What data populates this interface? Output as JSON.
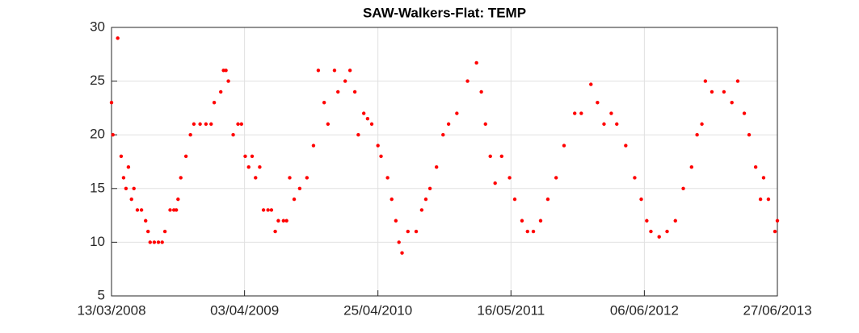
{
  "chart_data": {
    "type": "scatter",
    "title": "SAW-Walkers-Flat: TEMP",
    "x": [
      "2008-03-13",
      "2008-03-17",
      "2008-03-31",
      "2008-04-10",
      "2008-04-17",
      "2008-04-24",
      "2008-05-01",
      "2008-05-10",
      "2008-05-17",
      "2008-05-27",
      "2008-06-08",
      "2008-06-20",
      "2008-06-27",
      "2008-07-03",
      "2008-07-15",
      "2008-07-27",
      "2008-08-07",
      "2008-08-15",
      "2008-08-30",
      "2008-09-10",
      "2008-09-17",
      "2008-09-22",
      "2008-09-30",
      "2008-10-15",
      "2008-10-28",
      "2008-11-07",
      "2008-11-25",
      "2008-12-12",
      "2008-12-27",
      "2009-01-05",
      "2009-01-24",
      "2009-02-01",
      "2009-02-08",
      "2009-02-15",
      "2009-03-01",
      "2009-03-15",
      "2009-03-25",
      "2009-04-05",
      "2009-04-15",
      "2009-04-25",
      "2009-05-05",
      "2009-05-17",
      "2009-05-28",
      "2009-06-10",
      "2009-06-20",
      "2009-07-01",
      "2009-07-10",
      "2009-07-25",
      "2009-08-03",
      "2009-08-12",
      "2009-08-25",
      "2009-09-10",
      "2009-10-01",
      "2009-10-20",
      "2009-11-03",
      "2009-11-20",
      "2009-12-01",
      "2009-12-20",
      "2009-12-30",
      "2010-01-20",
      "2010-02-03",
      "2010-02-17",
      "2010-02-27",
      "2010-03-15",
      "2010-03-26",
      "2010-04-07",
      "2010-04-25",
      "2010-05-04",
      "2010-05-23",
      "2010-06-04",
      "2010-06-16",
      "2010-06-25",
      "2010-07-04",
      "2010-07-21",
      "2010-08-14",
      "2010-08-30",
      "2010-09-11",
      "2010-09-23",
      "2010-10-12",
      "2010-10-31",
      "2010-11-16",
      "2010-12-10",
      "2011-01-10",
      "2011-02-05",
      "2011-02-19",
      "2011-03-03",
      "2011-03-17",
      "2011-03-31",
      "2011-04-19",
      "2011-05-12",
      "2011-05-27",
      "2011-06-17",
      "2011-07-03",
      "2011-07-20",
      "2011-08-10",
      "2011-08-31",
      "2011-09-24",
      "2011-10-17",
      "2011-11-17",
      "2011-12-06",
      "2012-01-03",
      "2012-01-22",
      "2012-02-10",
      "2012-03-02",
      "2012-03-18",
      "2012-04-13",
      "2012-05-09",
      "2012-05-28",
      "2012-06-13",
      "2012-06-25",
      "2012-07-19",
      "2012-08-11",
      "2012-09-04",
      "2012-09-27",
      "2012-10-21",
      "2012-11-06",
      "2012-11-20",
      "2012-11-30",
      "2012-12-19",
      "2013-01-23",
      "2013-02-15",
      "2013-03-04",
      "2013-03-23",
      "2013-04-06",
      "2013-04-25",
      "2013-05-09",
      "2013-05-18",
      "2013-06-01",
      "2013-06-20",
      "2013-06-27"
    ],
    "series": [
      {
        "name": "TEMP",
        "color": "#ff0000",
        "values": [
          23,
          20,
          29,
          18,
          16,
          15,
          17,
          14,
          15,
          13,
          13,
          12,
          11,
          10,
          10,
          10,
          10,
          11,
          13,
          13,
          13,
          14,
          16,
          18,
          20,
          21,
          21,
          21,
          21,
          23,
          24,
          26,
          26,
          25,
          20,
          21,
          21,
          18,
          17,
          18,
          16,
          17,
          13,
          13,
          13,
          11,
          12,
          12,
          12,
          16,
          14,
          15,
          16,
          19,
          26,
          23,
          21,
          26,
          24,
          25,
          26,
          24,
          20,
          22,
          21.5,
          21,
          19,
          18,
          16,
          14,
          12,
          10,
          9,
          11,
          11,
          13,
          14,
          15,
          17,
          20,
          21,
          22,
          25,
          26.7,
          24,
          21,
          18,
          15.5,
          18,
          16,
          14,
          12,
          11,
          11,
          12,
          14,
          16,
          19,
          22,
          22,
          24.7,
          23,
          21,
          22,
          21,
          19,
          16,
          14,
          12,
          11,
          10.5,
          11,
          12,
          15,
          17,
          20,
          21,
          25,
          24,
          24,
          23,
          25,
          22,
          20,
          17,
          14,
          16,
          14,
          11,
          12
        ]
      }
    ],
    "xlim": [
      "2008-03-13",
      "2013-06-27"
    ],
    "xticks": [
      {
        "value": "2008-03-13",
        "label": "13/03/2008"
      },
      {
        "value": "2009-04-03",
        "label": "03/04/2009"
      },
      {
        "value": "2010-04-25",
        "label": "25/04/2010"
      },
      {
        "value": "2011-05-16",
        "label": "16/05/2011"
      },
      {
        "value": "2012-06-06",
        "label": "06/06/2012"
      },
      {
        "value": "2013-06-27",
        "label": "27/06/2013"
      }
    ],
    "ylim": [
      5,
      30
    ],
    "yticks": [
      5,
      10,
      15,
      20,
      25,
      30
    ],
    "grid": true
  }
}
